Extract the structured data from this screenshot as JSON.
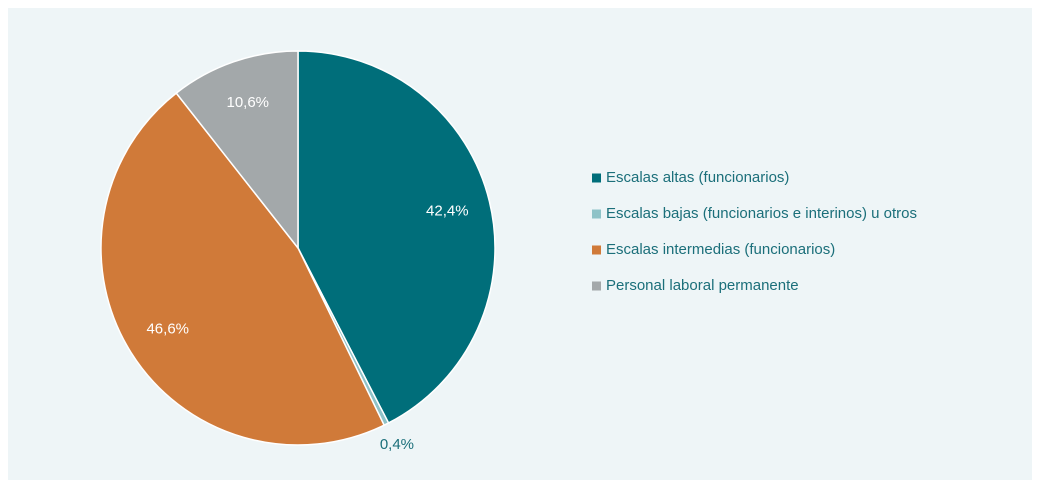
{
  "chart_data": {
    "type": "pie",
    "categories": [
      "Escalas altas (funcionarios)",
      "Escalas bajas (funcionarios e interinos) u otros",
      "Escalas intermedias (funcionarios)",
      "Personal laboral permanente"
    ],
    "values": [
      42.4,
      0.4,
      46.6,
      10.6
    ],
    "value_labels": [
      "42,4%",
      "0,4%",
      "46,6%",
      "10,6%"
    ],
    "colors": [
      "#006e7a",
      "#8fc3c8",
      "#d07a39",
      "#a3a8aa"
    ],
    "legend": "right"
  }
}
